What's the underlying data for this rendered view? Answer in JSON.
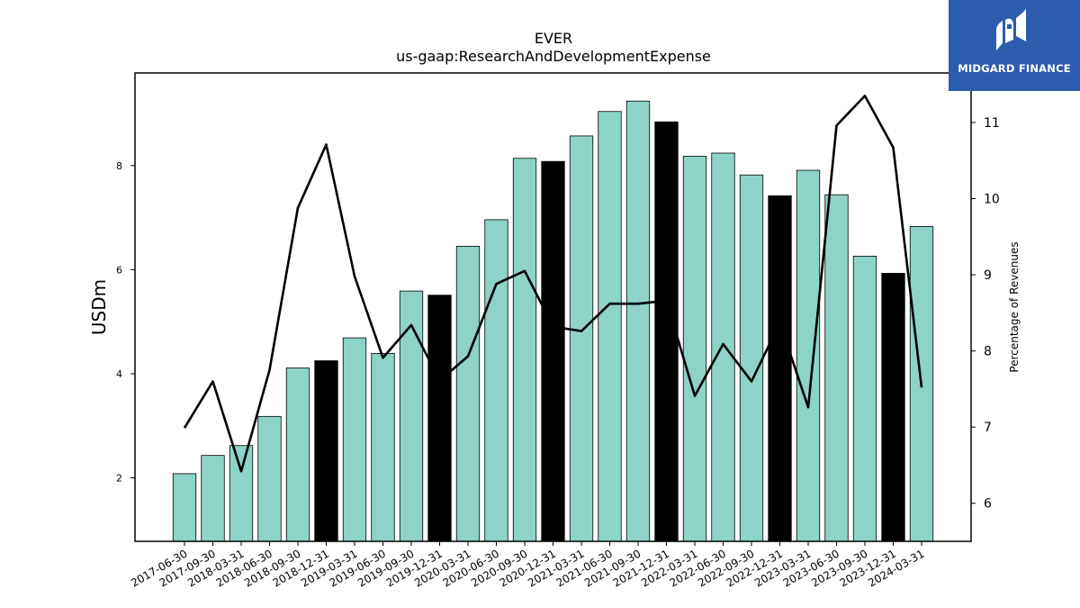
{
  "chart_data": {
    "type": "bar",
    "title": "EVER",
    "subtitle": "us-gaap:ResearchAndDevelopmentExpense",
    "ylabel": "USDm",
    "y2label": "Percentage of Revenues",
    "ylim": [
      0.78,
      9.78
    ],
    "y2lim": [
      5.5,
      11.65
    ],
    "yticks": [
      2,
      4,
      6,
      8
    ],
    "y2ticks": [
      6,
      7,
      8,
      9,
      10,
      11
    ],
    "categories": [
      "2017-06-30",
      "2017-09-30",
      "2018-03-31",
      "2018-06-30",
      "2018-09-30",
      "2018-12-31",
      "2019-03-31",
      "2019-06-30",
      "2019-09-30",
      "2019-12-31",
      "2020-03-31",
      "2020-06-30",
      "2020-09-30",
      "2020-12-31",
      "2021-03-31",
      "2021-06-30",
      "2021-09-30",
      "2021-12-31",
      "2022-03-31",
      "2022-06-30",
      "2022-09-30",
      "2022-12-31",
      "2023-03-31",
      "2023-06-30",
      "2023-09-30",
      "2023-12-31",
      "2024-03-31"
    ],
    "series": [
      {
        "type": "bar",
        "axis": "left",
        "values": [
          2.08,
          2.43,
          2.62,
          3.18,
          4.11,
          4.25,
          4.69,
          4.39,
          5.59,
          5.51,
          6.45,
          6.96,
          8.14,
          8.08,
          8.57,
          9.04,
          9.24,
          8.84,
          8.18,
          8.24,
          7.82,
          7.42,
          7.91,
          7.44,
          6.26,
          5.93,
          6.83
        ],
        "highlight": [
          false,
          false,
          false,
          false,
          false,
          true,
          false,
          false,
          false,
          true,
          false,
          false,
          false,
          true,
          false,
          false,
          false,
          true,
          false,
          false,
          false,
          true,
          false,
          false,
          false,
          true,
          false
        ]
      },
      {
        "type": "line",
        "axis": "right",
        "values": [
          6.99,
          7.6,
          6.42,
          7.75,
          9.88,
          10.71,
          8.98,
          7.91,
          8.34,
          7.61,
          7.93,
          8.88,
          9.05,
          8.32,
          8.26,
          8.62,
          8.62,
          8.66,
          7.41,
          8.09,
          7.6,
          8.37,
          7.26,
          10.96,
          11.35,
          10.67,
          7.52
        ]
      }
    ],
    "colors": {
      "bar": "#8dd3c7",
      "highlight": "#000000",
      "line": "#000000"
    }
  },
  "logo": {
    "text": "MIDGARD FINANCE",
    "background": "#2b5cae"
  }
}
